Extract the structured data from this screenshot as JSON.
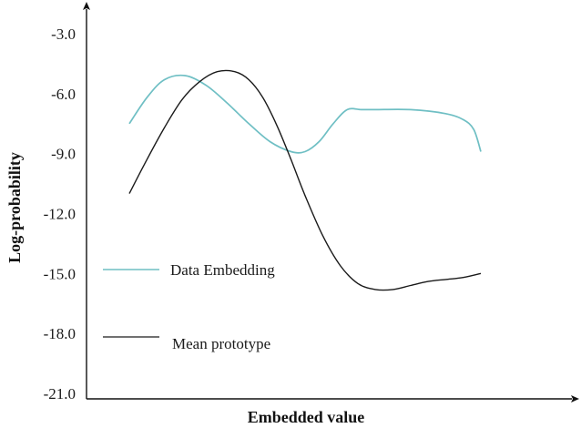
{
  "chart_data": {
    "type": "line",
    "title": "",
    "xlabel": "Embedded value",
    "ylabel": "Log-probability",
    "ylim": [
      -22.0,
      -1.5
    ],
    "yticks": [
      -3.0,
      -6.0,
      -9.0,
      -12.0,
      -15.0,
      -18.0,
      -21.0
    ],
    "ytick_labels": [
      "-3.0",
      "-6.0",
      "-9.0",
      "-12.0",
      "-15.0",
      "-18.0",
      "-21.0"
    ],
    "xlim": [
      0,
      10
    ],
    "grid": false,
    "legend_position": "left",
    "series": [
      {
        "name": "Data Embedding",
        "color": "#6fbfc4",
        "x": [
          0,
          0.5,
          1.0,
          1.6,
          2.2,
          2.8,
          3.4,
          4.0,
          4.6,
          5.0,
          5.4,
          5.8,
          6.2,
          6.6,
          7.0,
          8.0,
          9.0,
          9.5,
          9.8,
          10.0
        ],
        "values": [
          -7.5,
          -6.2,
          -5.3,
          -5.1,
          -5.6,
          -6.5,
          -7.5,
          -8.4,
          -8.9,
          -8.9,
          -8.4,
          -7.5,
          -6.8,
          -6.8,
          -6.8,
          -6.8,
          -7.0,
          -7.3,
          -7.8,
          -8.9
        ]
      },
      {
        "name": "Mean prototype",
        "color": "#1a1a1a",
        "x": [
          0,
          0.5,
          1.0,
          1.5,
          2.0,
          2.5,
          3.0,
          3.4,
          3.8,
          4.2,
          4.6,
          5.0,
          5.5,
          6.0,
          6.5,
          7.0,
          7.5,
          8.0,
          8.5,
          9.0,
          9.5,
          10.0
        ],
        "values": [
          -11.0,
          -9.3,
          -7.7,
          -6.3,
          -5.4,
          -4.9,
          -4.9,
          -5.3,
          -6.2,
          -7.6,
          -9.3,
          -11.1,
          -13.1,
          -14.6,
          -15.5,
          -15.8,
          -15.8,
          -15.6,
          -15.4,
          -15.3,
          -15.2,
          -15.0
        ]
      }
    ]
  }
}
